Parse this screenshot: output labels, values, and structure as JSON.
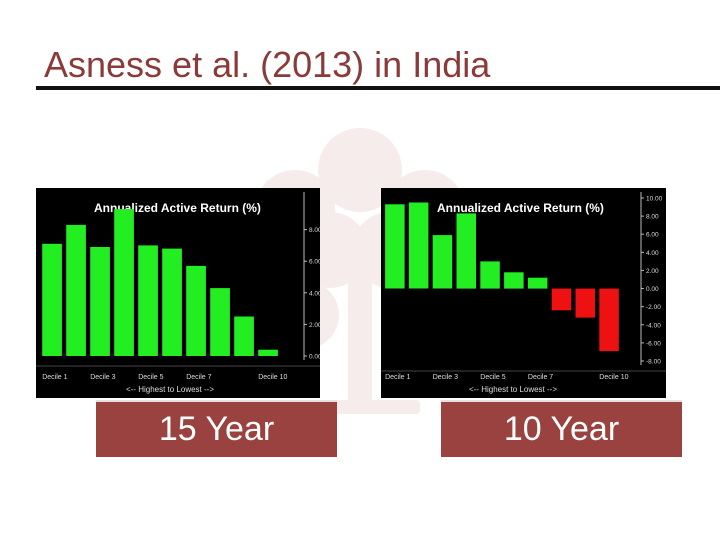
{
  "slide": {
    "title": "Asness et al. (2013) in India",
    "labels": [
      "15 Year",
      "10 Year"
    ]
  },
  "colors": {
    "positive": "#22ee22",
    "negative": "#ee1111",
    "panel": "#000000",
    "title": "#8b3a3a",
    "label_box": "#9a423f"
  },
  "chart_data": [
    {
      "type": "bar",
      "title": "Annualized Active Return (%)",
      "xlabel": "<-- Highest to Lowest -->",
      "ylabel": "",
      "categories": [
        "Decile 1",
        "Decile 2",
        "Decile 3",
        "Decile 4",
        "Decile 5",
        "Decile 6",
        "Decile 7",
        "Decile 8",
        "Decile 9",
        "Decile 10"
      ],
      "xtick_labels": [
        "Decile 1",
        "Decile 3",
        "Decile 5",
        "Decile 7",
        "Decile 10"
      ],
      "values": [
        7.1,
        8.3,
        6.9,
        9.3,
        7.0,
        6.8,
        5.7,
        4.3,
        2.5,
        0.4
      ],
      "ylim": [
        0,
        10
      ],
      "yticks": [
        "0.00",
        "2.00",
        "4.00",
        "6.00",
        "8.00"
      ],
      "ytick_values": [
        0,
        2,
        4,
        6,
        8
      ],
      "grid": false,
      "axis_side": "right"
    },
    {
      "type": "bar",
      "title": "Annualized Active Return (%)",
      "xlabel": "<-- Highest to Lowest -->",
      "ylabel": "",
      "categories": [
        "Decile 1",
        "Decile 2",
        "Decile 3",
        "Decile 4",
        "Decile 5",
        "Decile 6",
        "Decile 7",
        "Decile 8",
        "Decile 9",
        "Decile 10"
      ],
      "xtick_labels": [
        "Decile 1",
        "Decile 3",
        "Decile 5",
        "Decile 7",
        "Decile 10"
      ],
      "values": [
        9.3,
        9.5,
        5.9,
        8.3,
        3.0,
        1.8,
        1.2,
        -2.4,
        -3.2,
        -6.9
      ],
      "ylim": [
        -8,
        10
      ],
      "yticks": [
        "10.00",
        "8.00",
        "6.00",
        "4.00",
        "2.00",
        "0.00",
        "-2.00",
        "-4.00",
        "-6.00",
        "-8.00"
      ],
      "ytick_values": [
        10,
        8,
        6,
        4,
        2,
        0,
        -2,
        -4,
        -6,
        -8
      ],
      "grid": false,
      "axis_side": "right"
    }
  ]
}
